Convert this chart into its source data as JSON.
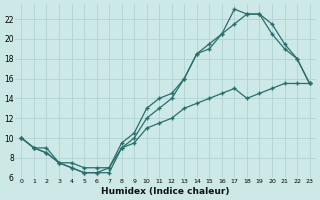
{
  "xlabel": "Humidex (Indice chaleur)",
  "bg_color": "#cce9e8",
  "line_color": "#2a6e6a",
  "grid_color": "#b0d4d2",
  "xlim": [
    -0.5,
    23.5
  ],
  "ylim": [
    6,
    23.5
  ],
  "xticks": [
    0,
    1,
    2,
    3,
    4,
    5,
    6,
    7,
    8,
    9,
    10,
    11,
    12,
    13,
    14,
    15,
    16,
    17,
    18,
    19,
    20,
    21,
    22,
    23
  ],
  "yticks": [
    6,
    8,
    10,
    12,
    14,
    16,
    18,
    20,
    22
  ],
  "line1_x": [
    0,
    1,
    2,
    3,
    4,
    5,
    6,
    7,
    8,
    9,
    10,
    11,
    12,
    13,
    14,
    15,
    16,
    17,
    18,
    19,
    20,
    21,
    22,
    23
  ],
  "line1_y": [
    10,
    9,
    9,
    7.5,
    7,
    6.5,
    6.5,
    7,
    9.5,
    10.5,
    13,
    14,
    14.5,
    16,
    18.5,
    19.5,
    20.5,
    21.5,
    22.5,
    22.5,
    21.5,
    19.5,
    18,
    15.5
  ],
  "line2_x": [
    0,
    1,
    2,
    3,
    4,
    5,
    6,
    7,
    8,
    9,
    10,
    11,
    12,
    13,
    14,
    15,
    16,
    17,
    18,
    19,
    20,
    21,
    22,
    23
  ],
  "line2_y": [
    10,
    9,
    8.5,
    7.5,
    7,
    6.5,
    6.5,
    6.5,
    9.0,
    10.0,
    12,
    13,
    14,
    16,
    18.5,
    19,
    20.5,
    23,
    22.5,
    22.5,
    20.5,
    19,
    18,
    15.5
  ],
  "line3_x": [
    0,
    1,
    2,
    3,
    4,
    5,
    6,
    7,
    8,
    9,
    10,
    11,
    12,
    13,
    14,
    15,
    16,
    17,
    18,
    19,
    20,
    21,
    22,
    23
  ],
  "line3_y": [
    10,
    9,
    8.5,
    7.5,
    7.5,
    7,
    7,
    7,
    9,
    9.5,
    11,
    11.5,
    12,
    13,
    13.5,
    14,
    14.5,
    15,
    14,
    14.5,
    15,
    15.5,
    15.5,
    15.5
  ]
}
